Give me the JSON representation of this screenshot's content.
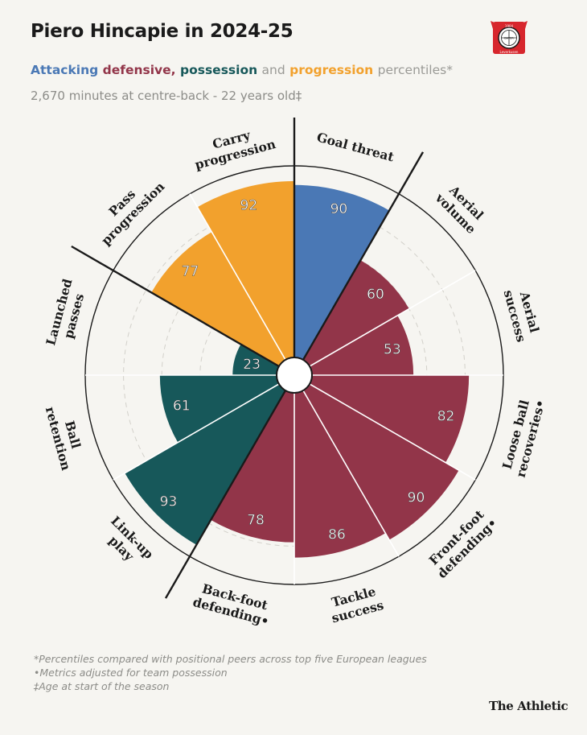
{
  "header": {
    "title": "Piero Hincapie in 2024-25",
    "subtitle_attacking": "Attacking",
    "subtitle_defensive": "defensive,",
    "subtitle_possession": "possession",
    "subtitle_and": "and",
    "subtitle_progression": "progression",
    "subtitle_rest": "percentiles*",
    "meta": "2,670 minutes at centre-back - 22 years old‡"
  },
  "crest": {
    "name": "Bayer Leverkusen crest",
    "top_text": "1904",
    "center_text": "BAYER",
    "bottom_text": "Leverkusen"
  },
  "colors": {
    "attacking": "#4a78b5",
    "defensive": "#923549",
    "possession": "#17585a",
    "progression": "#f2a12d",
    "background": "#f6f5f1"
  },
  "chart_data": {
    "type": "polar-bar",
    "title": "Piero Hincapie in 2024-25",
    "scale": [
      0,
      100
    ],
    "categories": [
      {
        "label_lines": [
          "Goal threat"
        ],
        "value": 90,
        "group": "attacking"
      },
      {
        "label_lines": [
          "Aerial",
          "volume"
        ],
        "value": 60,
        "group": "defensive"
      },
      {
        "label_lines": [
          "Aerial",
          "success"
        ],
        "value": 53,
        "group": "defensive"
      },
      {
        "label_lines": [
          "Loose ball",
          "recoveries•"
        ],
        "value": 82,
        "group": "defensive"
      },
      {
        "label_lines": [
          "Front-foot",
          "defending•"
        ],
        "value": 90,
        "group": "defensive"
      },
      {
        "label_lines": [
          "Tackle",
          "success"
        ],
        "value": 86,
        "group": "defensive"
      },
      {
        "label_lines": [
          "Back-foot",
          "defending•"
        ],
        "value": 78,
        "group": "defensive"
      },
      {
        "label_lines": [
          "Link-up",
          "play"
        ],
        "value": 93,
        "group": "possession"
      },
      {
        "label_lines": [
          "Ball",
          "retention"
        ],
        "value": 61,
        "group": "possession"
      },
      {
        "label_lines": [
          "Launched",
          "passes"
        ],
        "value": 23,
        "group": "possession"
      },
      {
        "label_lines": [
          "Pass",
          "progression"
        ],
        "value": 77,
        "group": "progression"
      },
      {
        "label_lines": [
          "Carry",
          "progression"
        ],
        "value": 92,
        "group": "progression"
      }
    ]
  },
  "footnotes": [
    "*Percentiles compared with positional peers across top five European leagues",
    "•Metrics adjusted for team possession",
    "‡Age at start of the season"
  ],
  "brand": "The Athletic"
}
